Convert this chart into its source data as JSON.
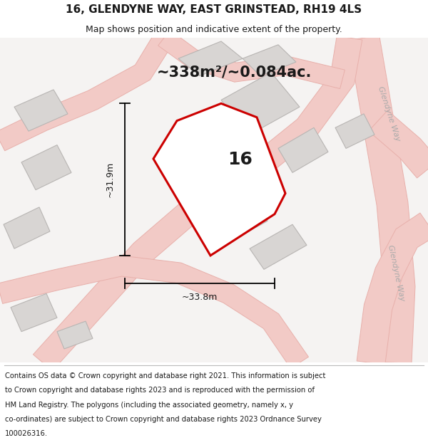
{
  "title": "16, GLENDYNE WAY, EAST GRINSTEAD, RH19 4LS",
  "subtitle": "Map shows position and indicative extent of the property.",
  "area_text": "~338m²/~0.084ac.",
  "number_label": "16",
  "dim_width": "~33.8m",
  "dim_height": "~31.9m",
  "footer_lines": [
    "Contains OS data © Crown copyright and database right 2021. This information is subject",
    "to Crown copyright and database rights 2023 and is reproduced with the permission of",
    "HM Land Registry. The polygons (including the associated geometry, namely x, y",
    "co-ordinates) are subject to Crown copyright and database rights 2023 Ordnance Survey",
    "100026316."
  ],
  "bg_color": "#f5f3f2",
  "road_color_fill": "#f2cac6",
  "road_color_edge": "#e8b0ab",
  "road_label_color": "#aaaaaa",
  "building_fill": "#d8d5d3",
  "building_edge": "#b8b5b3",
  "property_fill": "#ffffff",
  "property_edge": "#cc0000",
  "dim_color": "#1a1a1a",
  "text_color": "#1a1a1a",
  "glendyne_label1": "Glendyne Way",
  "glendyne_label2": "Glendyne Way",
  "title_fontsize": 11,
  "subtitle_fontsize": 9,
  "area_fontsize": 15,
  "number_fontsize": 18,
  "dim_fontsize": 9,
  "road_label_fontsize": 8,
  "footer_fontsize": 7.2
}
